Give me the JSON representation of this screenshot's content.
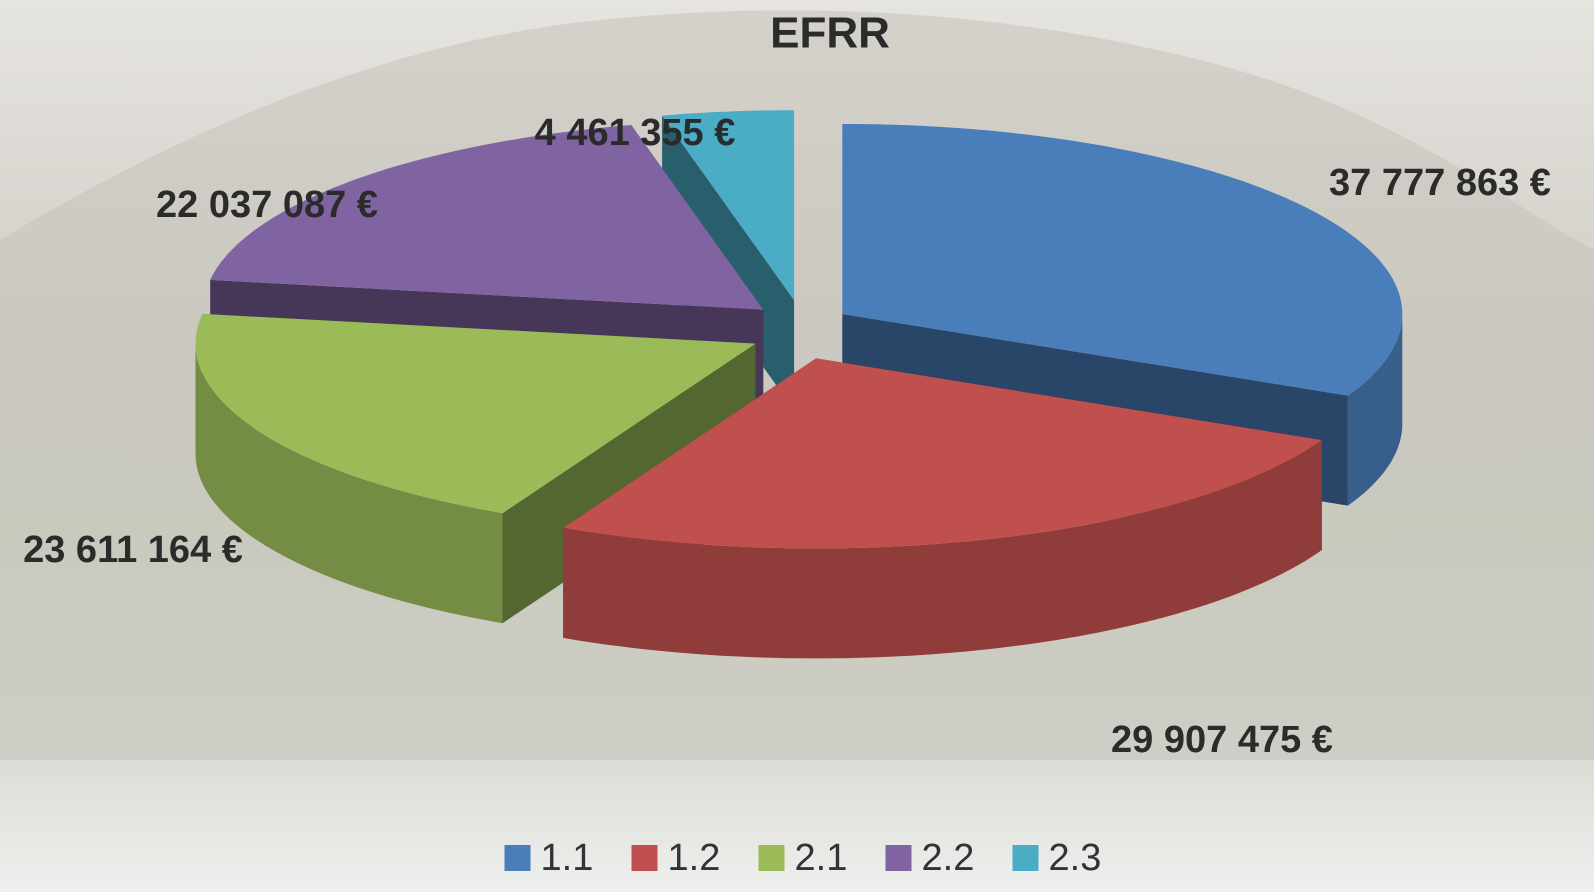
{
  "chart_data": {
    "type": "pie3d",
    "title": "EFRR",
    "categories": [
      "1.1",
      "1.2",
      "2.1",
      "2.2",
      "2.3"
    ],
    "values": [
      37777863,
      29907475,
      23611164,
      22037087,
      4461355
    ],
    "value_labels": [
      "37 777 863 €",
      "29 907 475 €",
      "23 611 164 €",
      "22 037 087 €",
      "4 461 355 €"
    ],
    "colors": [
      "#4a7ebb",
      "#c0504d",
      "#9bbb59",
      "#8064a2",
      "#4bacc6"
    ],
    "legend": "bottom"
  }
}
